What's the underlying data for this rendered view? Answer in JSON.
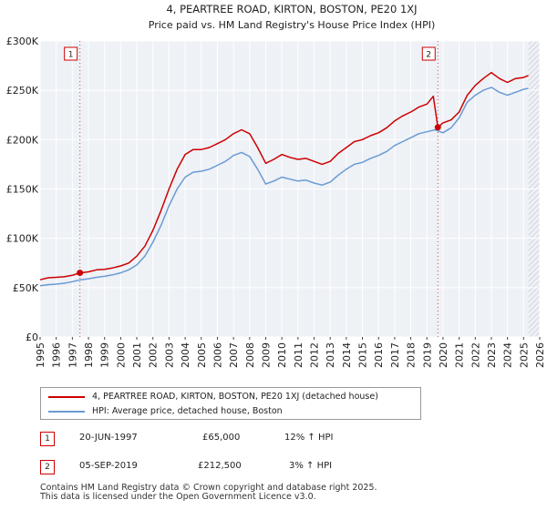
{
  "chart_data": {
    "type": "line",
    "title": "4, PEARTREE ROAD, KIRTON, BOSTON, PE20 1XJ",
    "subtitle": "Price paid vs. HM Land Registry's House Price Index (HPI)",
    "xlim": [
      1995,
      2026
    ],
    "ylim": [
      0,
      300000
    ],
    "grid": true,
    "y_ticks": [
      0,
      50000,
      100000,
      150000,
      200000,
      250000,
      300000
    ],
    "y_tick_labels": [
      "£0",
      "£50K",
      "£100K",
      "£150K",
      "£200K",
      "£250K",
      "£300K"
    ],
    "x_ticks": [
      1995,
      1996,
      1997,
      1998,
      1999,
      2000,
      2001,
      2002,
      2003,
      2004,
      2005,
      2006,
      2007,
      2008,
      2009,
      2010,
      2011,
      2012,
      2013,
      2014,
      2015,
      2016,
      2017,
      2018,
      2019,
      2020,
      2021,
      2022,
      2023,
      2024,
      2025,
      2026
    ],
    "series": [
      {
        "name": "4, PEARTREE ROAD, KIRTON, BOSTON, PE20 1XJ (detached house)",
        "color": "#cc0000",
        "x": [
          1995.0,
          1995.5,
          1996.0,
          1996.5,
          1997.0,
          1997.47,
          1998.0,
          1998.5,
          1999.0,
          1999.5,
          2000.0,
          2000.5,
          2001.0,
          2001.5,
          2002.0,
          2002.5,
          2003.0,
          2003.5,
          2004.0,
          2004.5,
          2005.0,
          2005.5,
          2006.0,
          2006.5,
          2007.0,
          2007.5,
          2008.0,
          2008.5,
          2009.0,
          2009.5,
          2010.0,
          2010.5,
          2011.0,
          2011.5,
          2012.0,
          2012.5,
          2013.0,
          2013.5,
          2014.0,
          2014.5,
          2015.0,
          2015.5,
          2016.0,
          2016.5,
          2017.0,
          2017.5,
          2018.0,
          2018.5,
          2019.0,
          2019.4,
          2019.68,
          2020.0,
          2020.5,
          2021.0,
          2021.5,
          2022.0,
          2022.5,
          2023.0,
          2023.5,
          2024.0,
          2024.5,
          2025.0,
          2025.3
        ],
        "values": [
          58000,
          60000,
          60500,
          61000,
          62500,
          65000,
          66000,
          68000,
          68500,
          70000,
          72000,
          75000,
          82000,
          92000,
          108000,
          128000,
          150000,
          170000,
          185000,
          190000,
          190000,
          192000,
          196000,
          200000,
          206000,
          210000,
          206000,
          192000,
          176000,
          180000,
          185000,
          182000,
          180000,
          181000,
          178000,
          175000,
          178000,
          186000,
          192000,
          198000,
          200000,
          204000,
          207000,
          212000,
          219000,
          224000,
          228000,
          233000,
          236000,
          244000,
          212500,
          217000,
          220000,
          228000,
          245000,
          255000,
          262000,
          268000,
          262000,
          258000,
          262000,
          263000,
          265000
        ]
      },
      {
        "name": "HPI: Average price, detached house, Boston",
        "color": "#6a9bd3",
        "x": [
          1995.0,
          1995.5,
          1996.0,
          1996.5,
          1997.0,
          1997.5,
          1998.0,
          1998.5,
          1999.0,
          1999.5,
          2000.0,
          2000.5,
          2001.0,
          2001.5,
          2002.0,
          2002.5,
          2003.0,
          2003.5,
          2004.0,
          2004.5,
          2005.0,
          2005.5,
          2006.0,
          2006.5,
          2007.0,
          2007.5,
          2008.0,
          2008.5,
          2009.0,
          2009.5,
          2010.0,
          2010.5,
          2011.0,
          2011.5,
          2012.0,
          2012.5,
          2013.0,
          2013.5,
          2014.0,
          2014.5,
          2015.0,
          2015.5,
          2016.0,
          2016.5,
          2017.0,
          2017.5,
          2018.0,
          2018.5,
          2019.0,
          2019.5,
          2020.0,
          2020.5,
          2021.0,
          2021.5,
          2022.0,
          2022.5,
          2023.0,
          2023.5,
          2024.0,
          2024.5,
          2025.0,
          2025.3
        ],
        "values": [
          52000,
          53000,
          53500,
          54500,
          56000,
          58000,
          59000,
          60500,
          61500,
          63000,
          65000,
          68000,
          73000,
          82000,
          96000,
          113000,
          133000,
          150000,
          162000,
          167000,
          168000,
          170000,
          174000,
          178000,
          184000,
          187000,
          183000,
          170000,
          155000,
          158000,
          162000,
          160000,
          158000,
          159000,
          156000,
          154000,
          157000,
          164000,
          170000,
          175000,
          177000,
          181000,
          184000,
          188000,
          194000,
          198000,
          202000,
          206000,
          208000,
          210000,
          207000,
          212000,
          222000,
          238000,
          245000,
          250000,
          253000,
          248000,
          245000,
          248000,
          251000,
          252000
        ]
      }
    ],
    "events": [
      {
        "label": "1",
        "date": 1997.47,
        "price": 65000
      },
      {
        "label": "2",
        "date": 2019.68,
        "price": 212500
      }
    ]
  },
  "legend": {
    "property": "4, PEARTREE ROAD, KIRTON, BOSTON, PE20 1XJ (detached house)",
    "hpi": "HPI: Average price, detached house, Boston"
  },
  "transactions": [
    {
      "num": "1",
      "date": "20-JUN-1997",
      "price": "£65,000",
      "hpi": "12% ↑ HPI"
    },
    {
      "num": "2",
      "date": "05-SEP-2019",
      "price": "£212,500",
      "hpi": "3% ↑ HPI"
    }
  ],
  "footer": {
    "line1": "Contains HM Land Registry data © Crown copyright and database right 2025.",
    "line2": "This data is licensed under the Open Government Licence v3.0."
  }
}
